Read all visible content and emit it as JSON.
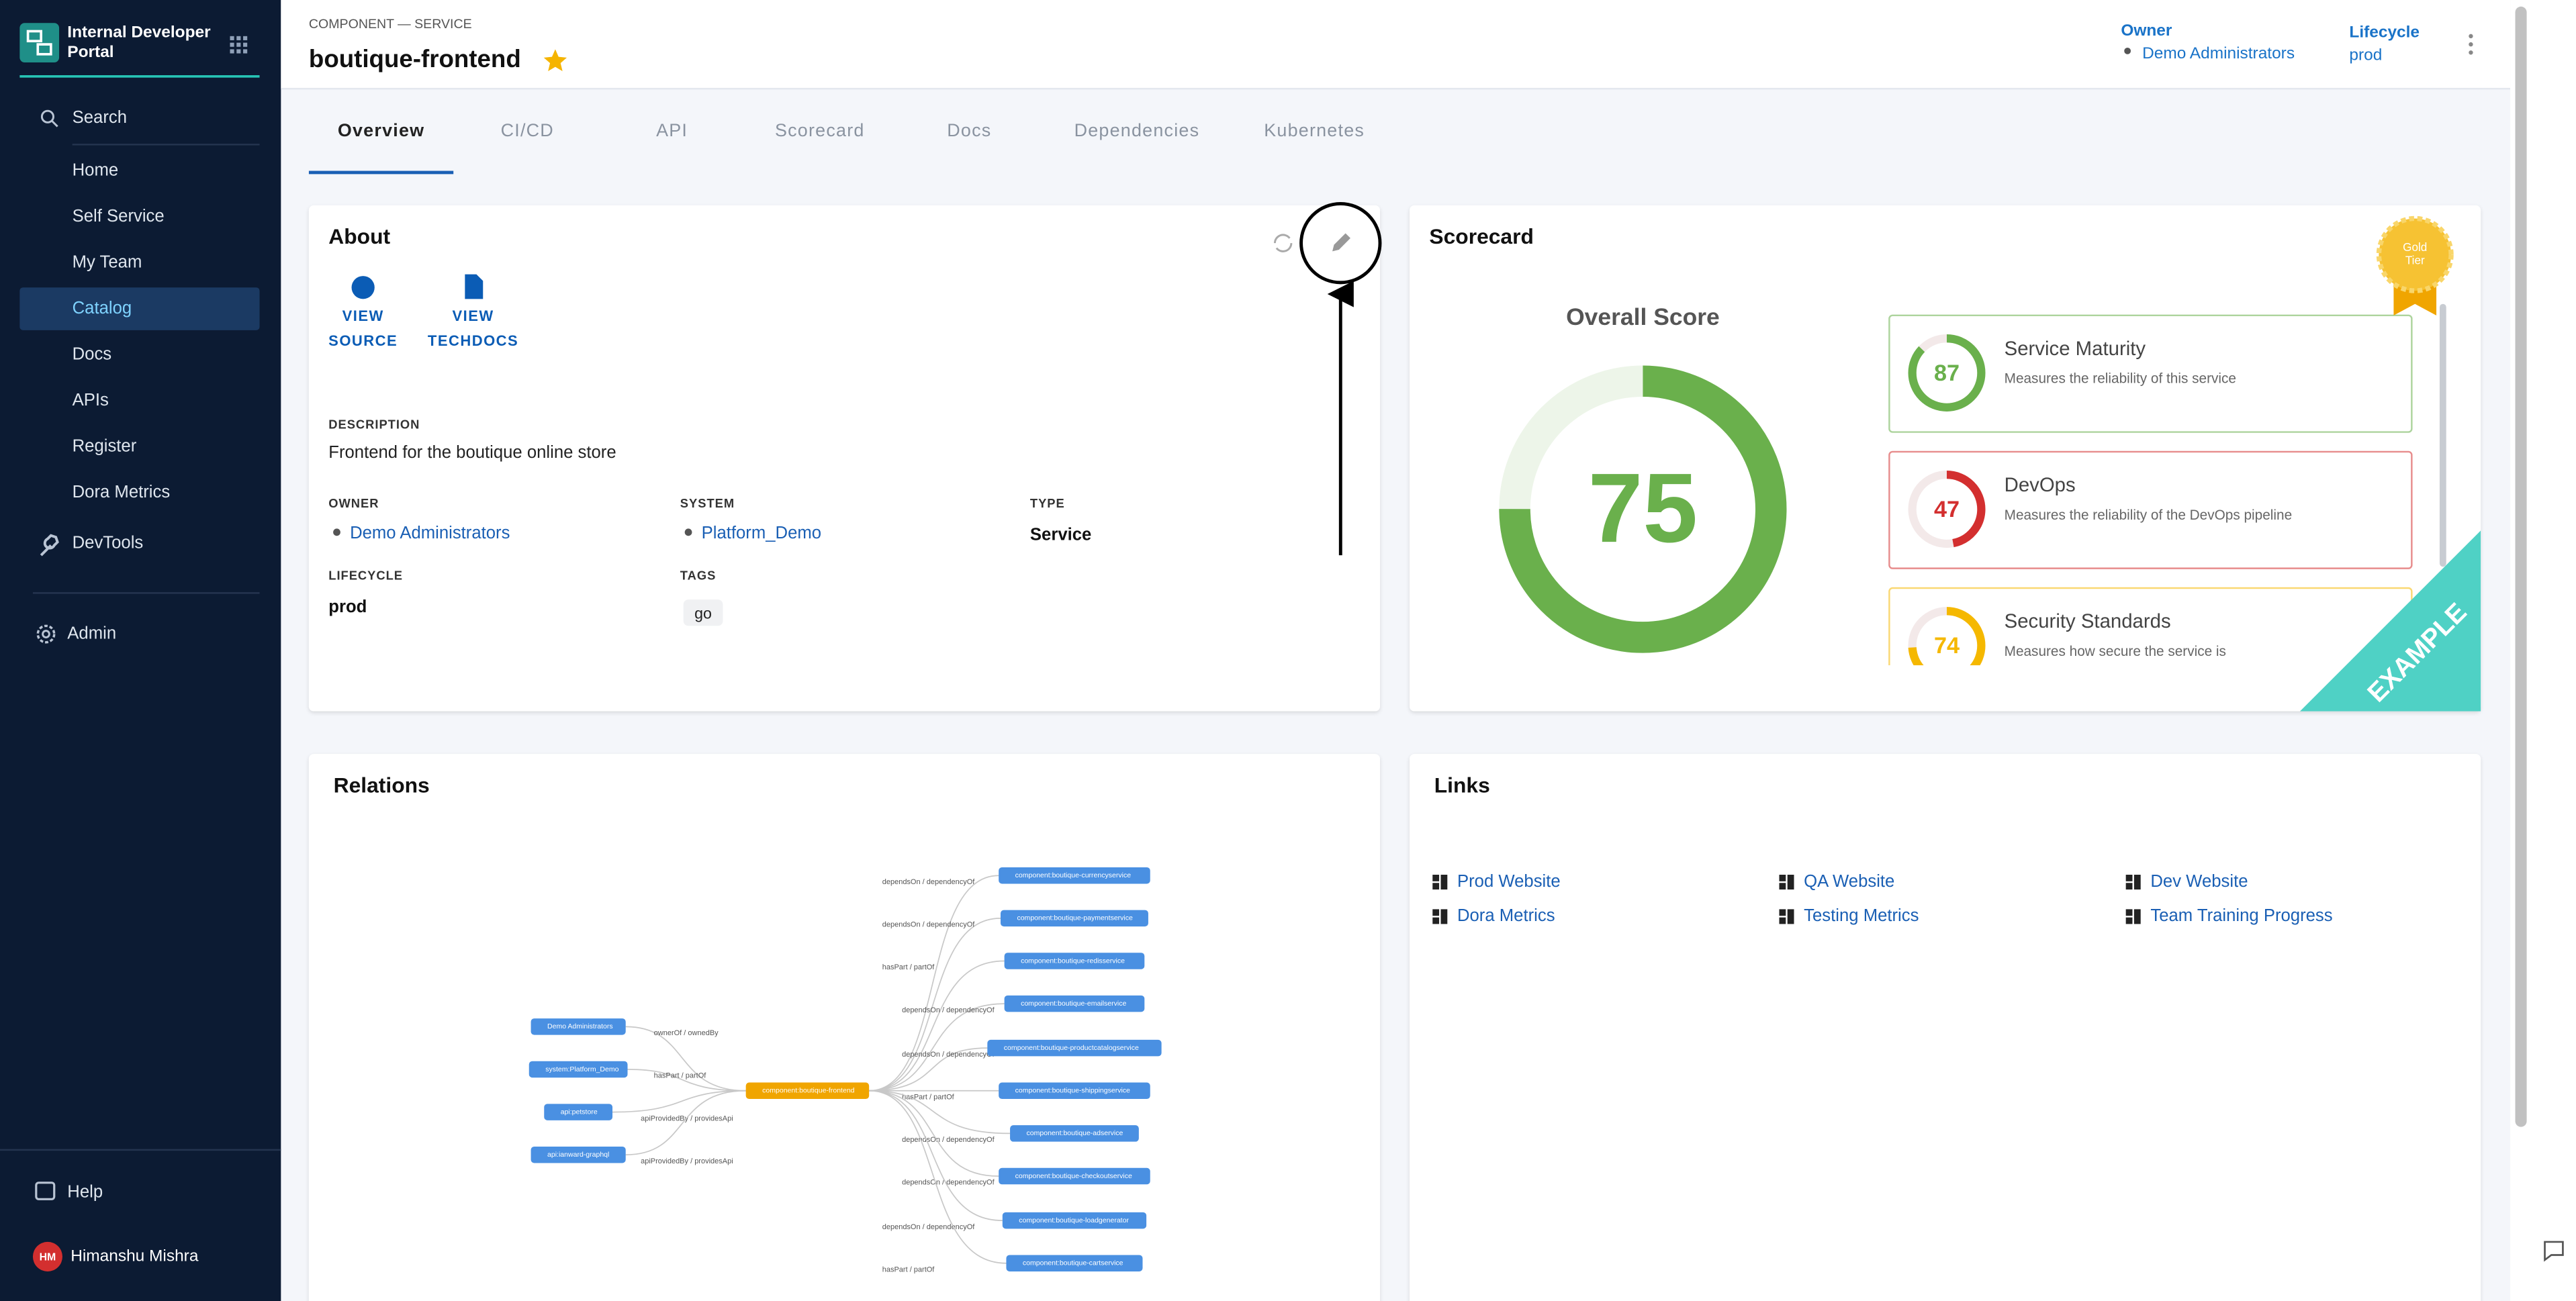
{
  "sidebar": {
    "title_line1": "Internal Developer",
    "title_line2": "Portal",
    "search": "Search",
    "nav": [
      "Home",
      "Self Service",
      "My Team",
      "Catalog",
      "Docs",
      "APIs",
      "Register",
      "Dora Metrics"
    ],
    "active": "Catalog",
    "devtools": "DevTools",
    "admin": "Admin",
    "help": "Help",
    "user": {
      "initials": "HM",
      "name": "Himanshu Mishra"
    }
  },
  "header": {
    "kind": "COMPONENT — SERVICE",
    "title": "boutique-frontend",
    "owner_label": "Owner",
    "owner": "Demo Administrators",
    "lifecycle_label": "Lifecycle",
    "lifecycle": "prod"
  },
  "tabs": [
    "Overview",
    "CI/CD",
    "API",
    "Scorecard",
    "Docs",
    "Dependencies",
    "Kubernetes"
  ],
  "about": {
    "title": "About",
    "actions": [
      {
        "line1": "VIEW",
        "line2": "SOURCE"
      },
      {
        "line1": "VIEW",
        "line2": "TECHDOCS"
      }
    ],
    "description_label": "DESCRIPTION",
    "description": "Frontend for the boutique online store",
    "fields": [
      {
        "label": "OWNER",
        "value": "Demo Administrators"
      },
      {
        "label": "SYSTEM",
        "value": "Platform_Demo"
      },
      {
        "label": "TYPE",
        "value": "Service"
      },
      {
        "label": "LIFECYCLE",
        "value": "prod"
      },
      {
        "label": "TAGS",
        "value": "go"
      }
    ]
  },
  "scorecard": {
    "title": "Scorecard",
    "badge_line1": "Gold",
    "badge_line2": "Tier",
    "overall_label": "Overall Score",
    "overall": 75,
    "overall_color": "#6ab04c",
    "ribbon": "EXAMPLE",
    "checks": [
      {
        "name": "Service Maturity",
        "desc": "Measures the reliability of this service",
        "score": 87,
        "color": "#6ab04c"
      },
      {
        "name": "DevOps",
        "desc": "Measures the reliability of the DevOps pipeline",
        "score": 47,
        "color": "#d32f2f"
      },
      {
        "name": "Security Standards",
        "desc": "Measures how secure the service is",
        "score": 74,
        "color": "#f5b800"
      }
    ]
  },
  "relations": {
    "title": "Relations",
    "center": "component:boutique-frontend",
    "sources": [
      {
        "label": "Demo Administrators",
        "edge": "ownerOf / ownedBy"
      },
      {
        "label": "system:Platform_Demo",
        "edge": "hasPart / partOf"
      },
      {
        "label": "api:petstore",
        "edge": "apiProvidedBy / providesApi"
      },
      {
        "label": "api:ianward-graphql",
        "edge": "apiProvidedBy / providesApi"
      }
    ],
    "targets": [
      {
        "label": "component:boutique-currencyservice",
        "edge": "dependsOn / dependencyOf"
      },
      {
        "label": "component:boutique-paymentservice",
        "edge": "dependsOn / dependencyOf"
      },
      {
        "label": "component:boutique-redisservice",
        "edge": "hasPart / partOf"
      },
      {
        "label": "component:boutique-emailservice",
        "edge": "dependsOn / dependencyOf"
      },
      {
        "label": "component:boutique-productcatalogservice",
        "edge": "dependsOn / dependencyOf"
      },
      {
        "label": "component:boutique-shippingservice",
        "edge": "hasPart / partOf"
      },
      {
        "label": "component:boutique-adservice",
        "edge": "dependsOn / dependencyOf"
      },
      {
        "label": "component:boutique-checkoutservice",
        "edge": "dependsOn / dependencyOf"
      },
      {
        "label": "component:boutique-loadgenerator",
        "edge": "dependsOn / dependencyOf"
      },
      {
        "label": "component:boutique-cartservice",
        "edge": "hasPart / partOf"
      }
    ]
  },
  "links": {
    "title": "Links",
    "items": [
      "Prod Website",
      "QA Website",
      "Dev Website",
      "Dora Metrics",
      "Testing Metrics",
      "Team Training Progress"
    ]
  }
}
